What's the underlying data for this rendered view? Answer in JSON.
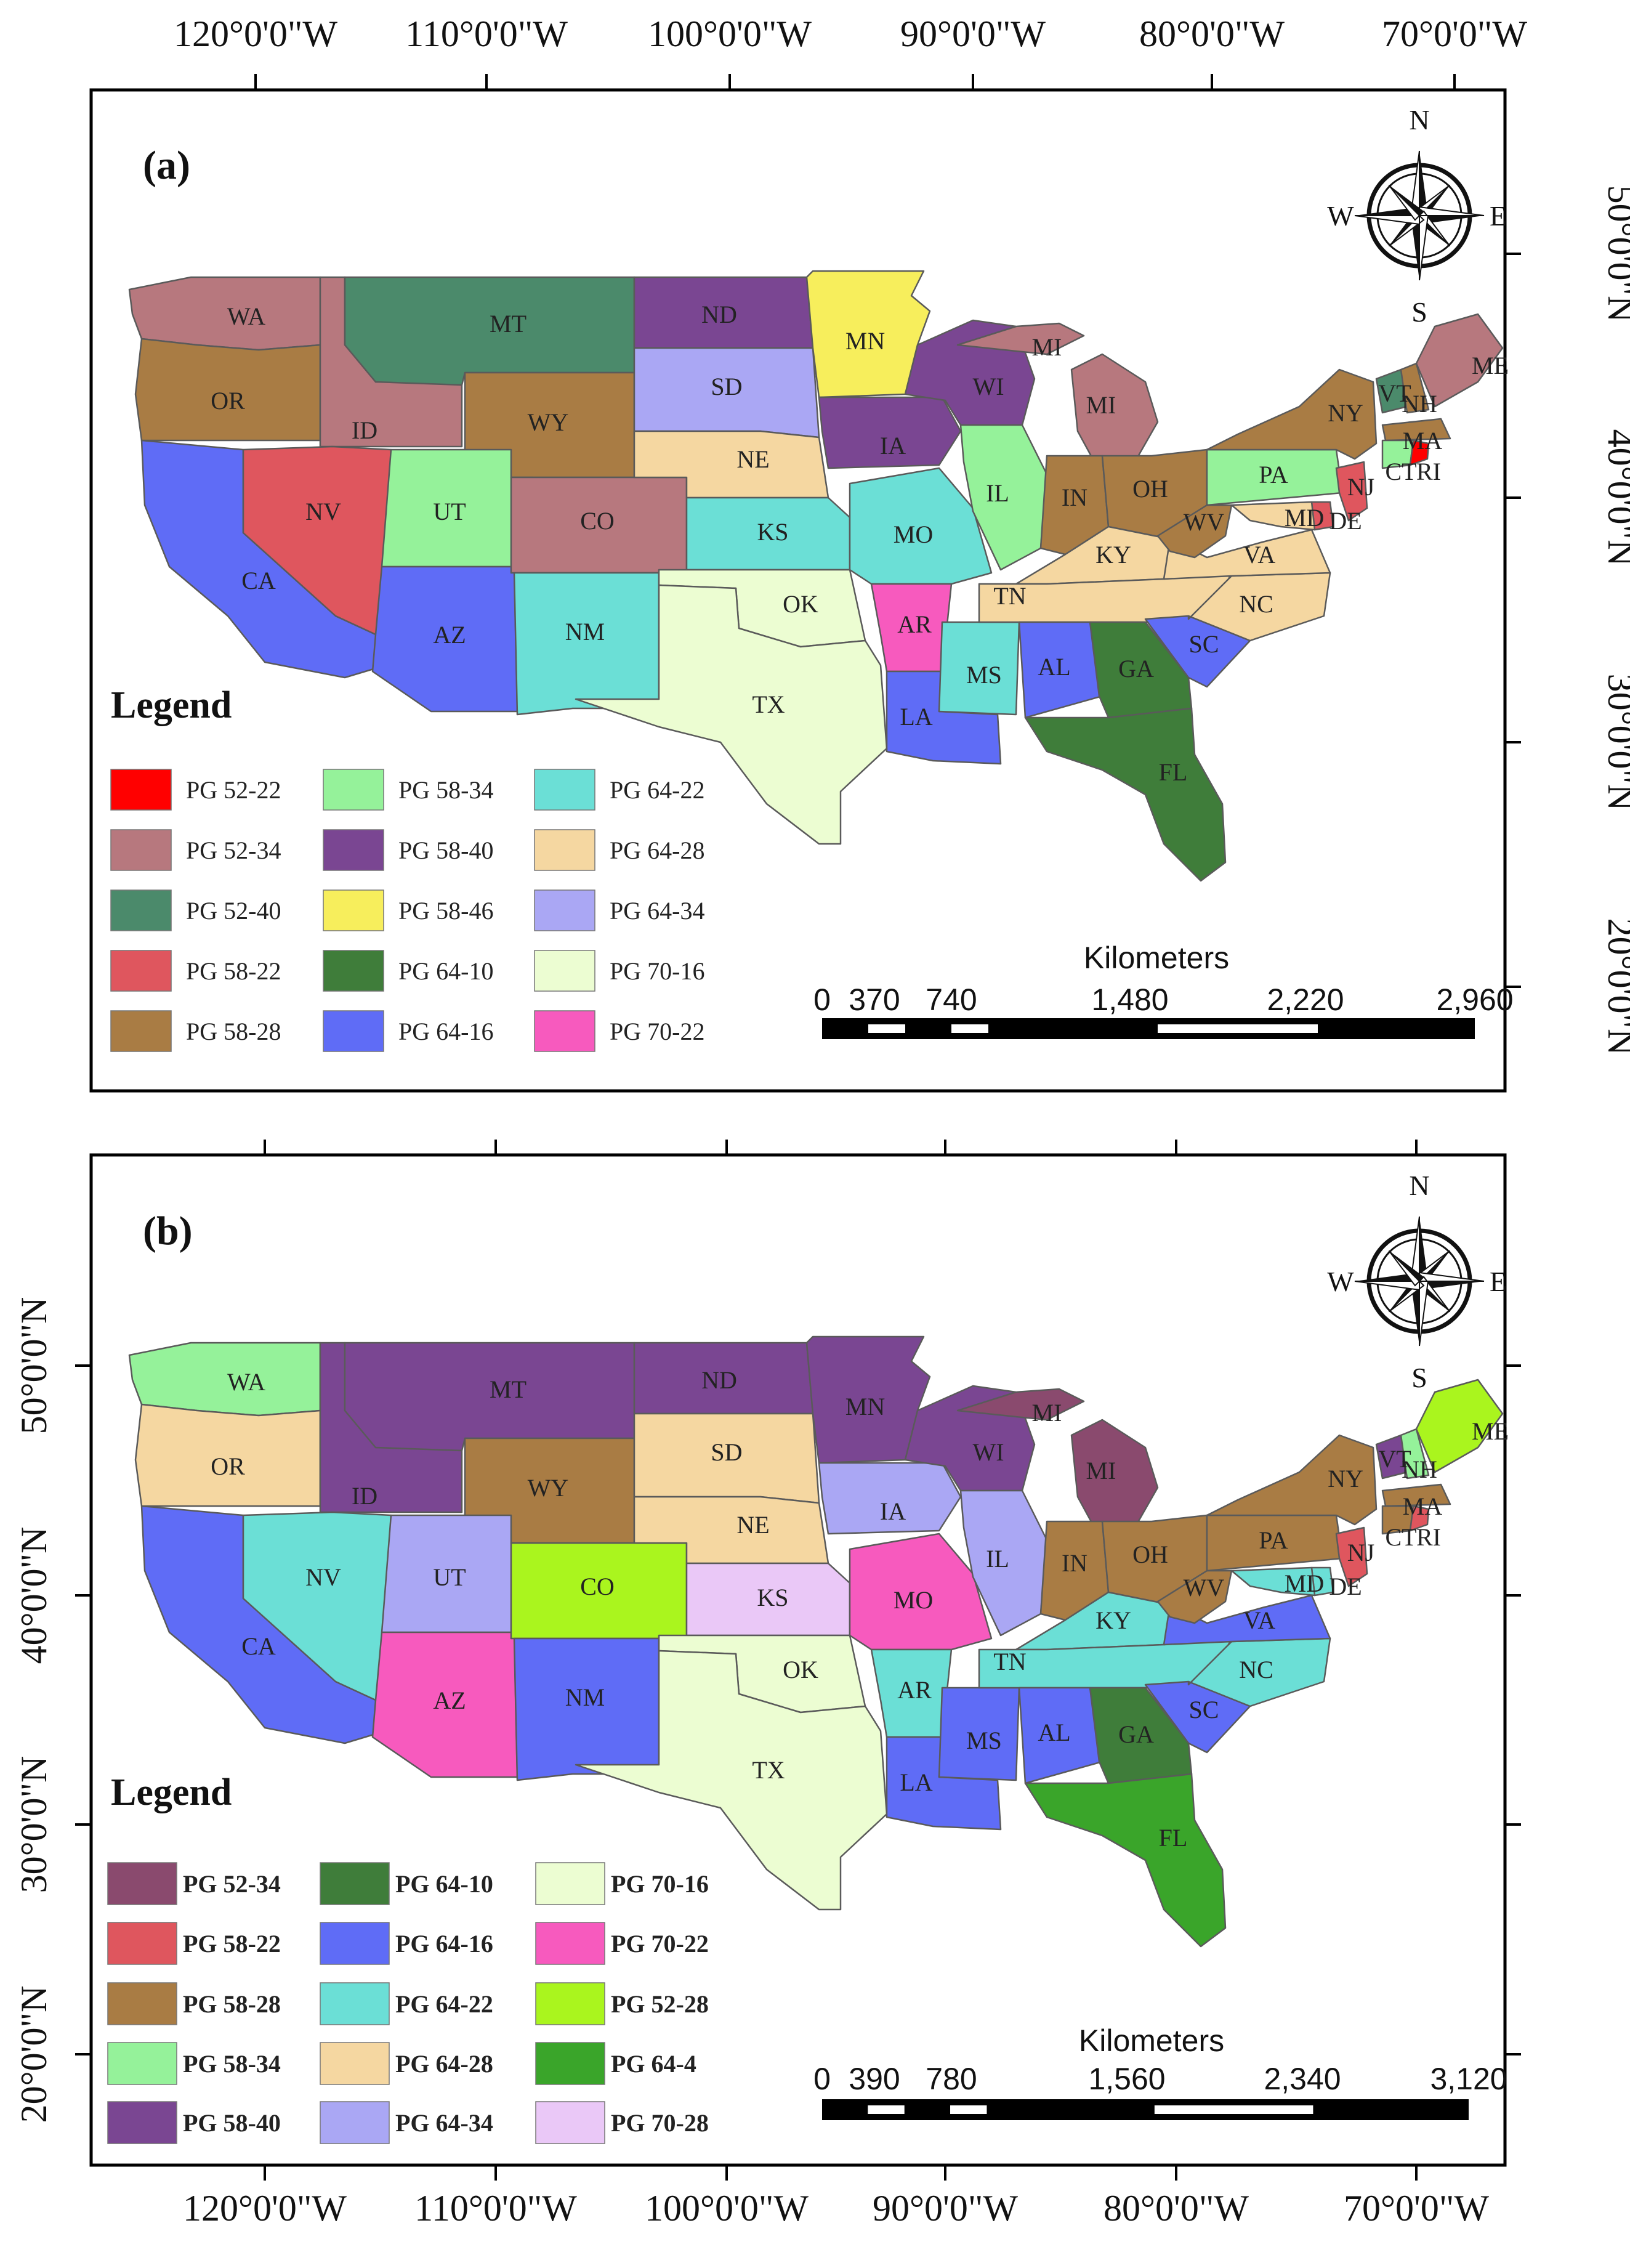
{
  "top_longitude_labels": [
    "120°0'0\"W",
    "110°0'0\"W",
    "100°0'0\"W",
    "90°0'0\"W",
    "80°0'0\"W",
    "70°0'0\"W"
  ],
  "bottom_longitude_labels": [
    "120°0'0\"W",
    "110°0'0\"W",
    "100°0'0\"W",
    "90°0'0\"W",
    "80°0'0\"W",
    "70°0'0\"W"
  ],
  "right_latitude_labels": [
    "50°0'0\"N",
    "40°0'0\"N",
    "30°0'0\"N",
    "20°0'0\"N"
  ],
  "left_latitude_labels": [
    "50°0'0\"N",
    "40°0'0\"N",
    "30°0'0\"N",
    "20°0'0\"N"
  ],
  "compass": {
    "north": "N",
    "south": "S",
    "east": "E",
    "west": "W"
  },
  "panel_a": {
    "label": "(a)",
    "legend_title": "Legend",
    "legend": [
      {
        "label": "PG 52-22",
        "color": "#ff0000"
      },
      {
        "label": "PG 52-34",
        "color": "#b7787e"
      },
      {
        "label": "PG 52-40",
        "color": "#4b8a6b"
      },
      {
        "label": "PG 58-22",
        "color": "#df565e"
      },
      {
        "label": "PG 58-28",
        "color": "#a97c44"
      },
      {
        "label": "PG 58-34",
        "color": "#95f29a"
      },
      {
        "label": "PG 58-40",
        "color": "#7a4692"
      },
      {
        "label": "PG 58-46",
        "color": "#f7ee5c"
      },
      {
        "label": "PG 64-10",
        "color": "#3f7d3a"
      },
      {
        "label": "PG 64-16",
        "color": "#5f6cf6"
      },
      {
        "label": "PG 64-22",
        "color": "#6bdfd6"
      },
      {
        "label": "PG 64-28",
        "color": "#f5d7a1"
      },
      {
        "label": "PG 64-34",
        "color": "#aaa7f4"
      },
      {
        "label": "PG 70-16",
        "color": "#ecfdd2"
      },
      {
        "label": "PG 70-22",
        "color": "#f75abe"
      }
    ],
    "scale": {
      "title": "Kilometers",
      "ticks": [
        "0",
        "370",
        "740",
        "1,480",
        "2,220",
        "2,960"
      ]
    },
    "states": [
      {
        "abbr": "WA",
        "fill": "#b7787e"
      },
      {
        "abbr": "OR",
        "fill": "#a97c44"
      },
      {
        "abbr": "CA",
        "fill": "#5f6cf6"
      },
      {
        "abbr": "ID",
        "fill": "#b7787e"
      },
      {
        "abbr": "NV",
        "fill": "#df565e"
      },
      {
        "abbr": "MT",
        "fill": "#4b8a6b"
      },
      {
        "abbr": "WY",
        "fill": "#a97c44"
      },
      {
        "abbr": "UT",
        "fill": "#95f29a"
      },
      {
        "abbr": "AZ",
        "fill": "#5f6cf6"
      },
      {
        "abbr": "CO",
        "fill": "#b7787e"
      },
      {
        "abbr": "NM",
        "fill": "#6bdfd6"
      },
      {
        "abbr": "ND",
        "fill": "#7a4692"
      },
      {
        "abbr": "SD",
        "fill": "#aaa7f4"
      },
      {
        "abbr": "NE",
        "fill": "#f5d7a1"
      },
      {
        "abbr": "KS",
        "fill": "#6bdfd6"
      },
      {
        "abbr": "OK",
        "fill": "#ecfdd2"
      },
      {
        "abbr": "TX",
        "fill": "#ecfdd2"
      },
      {
        "abbr": "MN",
        "fill": "#f7ee5c"
      },
      {
        "abbr": "IA",
        "fill": "#7a4692"
      },
      {
        "abbr": "MO",
        "fill": "#6bdfd6"
      },
      {
        "abbr": "AR",
        "fill": "#f75abe"
      },
      {
        "abbr": "LA",
        "fill": "#5f6cf6"
      },
      {
        "abbr": "WI",
        "fill": "#7a4692"
      },
      {
        "abbr": "IL",
        "fill": "#95f29a"
      },
      {
        "abbr": "MS",
        "fill": "#6bdfd6"
      },
      {
        "abbr": "MI",
        "fill": "#b7787e"
      },
      {
        "abbr": "MI",
        "fill": "#b7787e"
      },
      {
        "abbr": "IN",
        "fill": "#a97c44"
      },
      {
        "abbr": "OH",
        "fill": "#a97c44"
      },
      {
        "abbr": "KY",
        "fill": "#f5d7a1"
      },
      {
        "abbr": "TN",
        "fill": "#f5d7a1"
      },
      {
        "abbr": "AL",
        "fill": "#5f6cf6"
      },
      {
        "abbr": "GA",
        "fill": "#3f7d3a"
      },
      {
        "abbr": "FL",
        "fill": "#3f7d3a"
      },
      {
        "abbr": "SC",
        "fill": "#5f6cf6"
      },
      {
        "abbr": "NC",
        "fill": "#f5d7a1"
      },
      {
        "abbr": "VA",
        "fill": "#f5d7a1"
      },
      {
        "abbr": "WV",
        "fill": "#a97c44"
      },
      {
        "abbr": "PA",
        "fill": "#95f29a"
      },
      {
        "abbr": "NY",
        "fill": "#a97c44"
      },
      {
        "abbr": "VT",
        "fill": "#4b8a6b"
      },
      {
        "abbr": "NH",
        "fill": "#a97c44"
      },
      {
        "abbr": "ME",
        "fill": "#b7787e"
      },
      {
        "abbr": "MA",
        "fill": "#a97c44"
      },
      {
        "abbr": "CT",
        "fill": "#95f29a"
      },
      {
        "abbr": "RI",
        "fill": "#ff0000"
      },
      {
        "abbr": "NJ",
        "fill": "#df565e"
      },
      {
        "abbr": "DE",
        "fill": "#df565e"
      },
      {
        "abbr": "MD",
        "fill": "#f5d7a1"
      }
    ]
  },
  "panel_b": {
    "label": "(b)",
    "legend_title": "Legend",
    "legend": [
      {
        "label": "PG 52-34",
        "color": "#8a4a6e"
      },
      {
        "label": "PG 58-22",
        "color": "#df565e"
      },
      {
        "label": "PG 58-28",
        "color": "#a97c44"
      },
      {
        "label": "PG 58-34",
        "color": "#95f29a"
      },
      {
        "label": "PG 58-40",
        "color": "#7a4692"
      },
      {
        "label": "PG 64-10",
        "color": "#3f7d3a"
      },
      {
        "label": "PG 64-16",
        "color": "#5f6cf6"
      },
      {
        "label": "PG 64-22",
        "color": "#6bdfd6"
      },
      {
        "label": "PG 64-28",
        "color": "#f5d7a1"
      },
      {
        "label": "PG 64-34",
        "color": "#aaa7f4"
      },
      {
        "label": "PG 70-16",
        "color": "#ecfdd2"
      },
      {
        "label": "PG 70-22",
        "color": "#f75abe"
      },
      {
        "label": "PG 52-28",
        "color": "#aaf51e"
      },
      {
        "label": "PG 64-4",
        "color": "#3aa52a"
      },
      {
        "label": "PG 70-28",
        "color": "#eac8f7"
      }
    ],
    "scale": {
      "title": "Kilometers",
      "ticks": [
        "0",
        "390",
        "780",
        "1,560",
        "2,340",
        "3,120"
      ]
    },
    "states": [
      {
        "abbr": "WA",
        "fill": "#95f29a"
      },
      {
        "abbr": "OR",
        "fill": "#f5d7a1"
      },
      {
        "abbr": "CA",
        "fill": "#5f6cf6"
      },
      {
        "abbr": "ID",
        "fill": "#7a4692"
      },
      {
        "abbr": "NV",
        "fill": "#6bdfd6"
      },
      {
        "abbr": "MT",
        "fill": "#7a4692"
      },
      {
        "abbr": "WY",
        "fill": "#a97c44"
      },
      {
        "abbr": "UT",
        "fill": "#aaa7f4"
      },
      {
        "abbr": "AZ",
        "fill": "#f75abe"
      },
      {
        "abbr": "CO",
        "fill": "#aaf51e"
      },
      {
        "abbr": "NM",
        "fill": "#5f6cf6"
      },
      {
        "abbr": "ND",
        "fill": "#7a4692"
      },
      {
        "abbr": "SD",
        "fill": "#f5d7a1"
      },
      {
        "abbr": "NE",
        "fill": "#f5d7a1"
      },
      {
        "abbr": "KS",
        "fill": "#eac8f7"
      },
      {
        "abbr": "OK",
        "fill": "#ecfdd2"
      },
      {
        "abbr": "TX",
        "fill": "#ecfdd2"
      },
      {
        "abbr": "MN",
        "fill": "#7a4692"
      },
      {
        "abbr": "IA",
        "fill": "#aaa7f4"
      },
      {
        "abbr": "MO",
        "fill": "#f75abe"
      },
      {
        "abbr": "AR",
        "fill": "#6bdfd6"
      },
      {
        "abbr": "LA",
        "fill": "#5f6cf6"
      },
      {
        "abbr": "WI",
        "fill": "#7a4692"
      },
      {
        "abbr": "IL",
        "fill": "#aaa7f4"
      },
      {
        "abbr": "MS",
        "fill": "#5f6cf6"
      },
      {
        "abbr": "MI",
        "fill": "#8a4a6e"
      },
      {
        "abbr": "MI",
        "fill": "#8a4a6e"
      },
      {
        "abbr": "IN",
        "fill": "#a97c44"
      },
      {
        "abbr": "OH",
        "fill": "#a97c44"
      },
      {
        "abbr": "KY",
        "fill": "#6bdfd6"
      },
      {
        "abbr": "TN",
        "fill": "#6bdfd6"
      },
      {
        "abbr": "AL",
        "fill": "#5f6cf6"
      },
      {
        "abbr": "GA",
        "fill": "#3f7d3a"
      },
      {
        "abbr": "FL",
        "fill": "#3aa52a"
      },
      {
        "abbr": "SC",
        "fill": "#5f6cf6"
      },
      {
        "abbr": "NC",
        "fill": "#6bdfd6"
      },
      {
        "abbr": "VA",
        "fill": "#5f6cf6"
      },
      {
        "abbr": "WV",
        "fill": "#a97c44"
      },
      {
        "abbr": "PA",
        "fill": "#a97c44"
      },
      {
        "abbr": "NY",
        "fill": "#a97c44"
      },
      {
        "abbr": "VT",
        "fill": "#7a4692"
      },
      {
        "abbr": "NH",
        "fill": "#95f29a"
      },
      {
        "abbr": "ME",
        "fill": "#aaf51e"
      },
      {
        "abbr": "MA",
        "fill": "#a97c44"
      },
      {
        "abbr": "CT",
        "fill": "#a97c44"
      },
      {
        "abbr": "RI",
        "fill": "#df565e"
      },
      {
        "abbr": "NJ",
        "fill": "#df565e"
      },
      {
        "abbr": "DE",
        "fill": "#6bdfd6"
      },
      {
        "abbr": "MD",
        "fill": "#6bdfd6"
      }
    ]
  }
}
